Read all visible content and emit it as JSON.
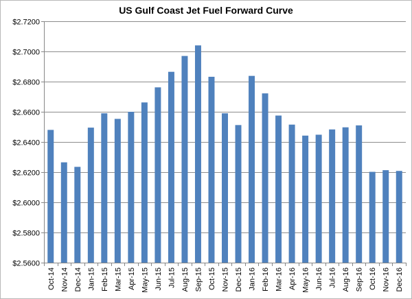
{
  "chart_data": {
    "type": "bar",
    "title": "US Gulf Coast Jet Fuel Forward Curve",
    "xlabel": "",
    "ylabel": "",
    "ylim": [
      2.56,
      2.72
    ],
    "ytick_step": 0.02,
    "ytick_prefix": "$",
    "ytick_decimals": 4,
    "grid": true,
    "legend": "none",
    "bar_color": "#4f81bd",
    "categories": [
      "Oct-14",
      "Nov-14",
      "Dec-14",
      "Jan-15",
      "Feb-15",
      "Mar-15",
      "Apr-15",
      "May-15",
      "Jun-15",
      "Jul-15",
      "Aug-15",
      "Sep-15",
      "Oct-15",
      "Nov-15",
      "Dec-15",
      "Jan-16",
      "Feb-16",
      "Mar-16",
      "Apr-16",
      "May-16",
      "Jun-16",
      "Jul-16",
      "Aug-16",
      "Sep-16",
      "Oct-16",
      "Nov-16",
      "Dec-16"
    ],
    "values": [
      2.648,
      2.6265,
      2.6235,
      2.6495,
      2.659,
      2.6553,
      2.66,
      2.6662,
      2.6762,
      2.6865,
      2.697,
      2.704,
      2.6832,
      2.659,
      2.6512,
      2.6838,
      2.6722,
      2.6575,
      2.6515,
      2.6442,
      2.6448,
      2.6483,
      2.6497,
      2.651,
      2.6202,
      2.6213,
      2.6208
    ]
  }
}
